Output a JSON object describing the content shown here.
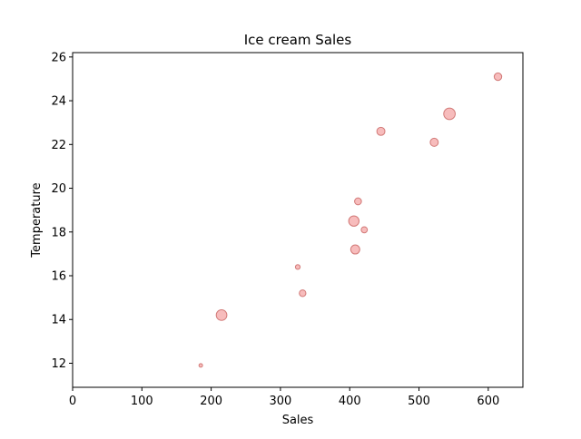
{
  "chart_data": {
    "type": "scatter",
    "title": "Ice cream Sales",
    "xlabel": "Sales",
    "ylabel": "Temperature",
    "xlim": [
      0,
      650
    ],
    "ylim": [
      10.9,
      26.2
    ],
    "xticks": [
      0,
      100,
      200,
      300,
      400,
      500,
      600
    ],
    "yticks": [
      12,
      14,
      16,
      18,
      20,
      22,
      24,
      26
    ],
    "grid": false,
    "marker_color": "#f4a6a6",
    "marker_edge_color": "#c0504d",
    "points": [
      {
        "x": 185,
        "y": 11.9,
        "size": 10
      },
      {
        "x": 215,
        "y": 14.2,
        "size": 90
      },
      {
        "x": 325,
        "y": 16.4,
        "size": 18
      },
      {
        "x": 332,
        "y": 15.2,
        "size": 35
      },
      {
        "x": 406,
        "y": 18.5,
        "size": 85
      },
      {
        "x": 408,
        "y": 17.2,
        "size": 65
      },
      {
        "x": 412,
        "y": 19.4,
        "size": 38
      },
      {
        "x": 421,
        "y": 18.1,
        "size": 30
      },
      {
        "x": 445,
        "y": 22.6,
        "size": 52
      },
      {
        "x": 522,
        "y": 22.1,
        "size": 52
      },
      {
        "x": 544,
        "y": 23.4,
        "size": 105
      },
      {
        "x": 614,
        "y": 25.1,
        "size": 45
      }
    ]
  }
}
